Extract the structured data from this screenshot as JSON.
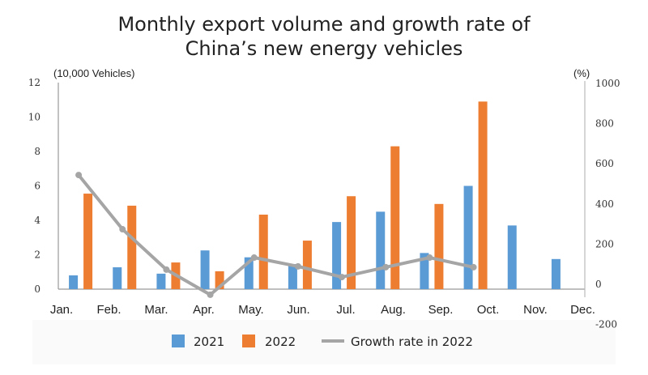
{
  "chart_data": {
    "type": "bar",
    "title_line1": "Monthly export volume and growth rate of",
    "title_line2": "China’s new energy vehicles",
    "ylabel": "(10,000 Vehicles)",
    "y2label": "(%)",
    "ylim": [
      0,
      12
    ],
    "yticks": [
      0,
      2,
      4,
      6,
      8,
      10,
      12
    ],
    "y2lim": [
      -200,
      1000
    ],
    "y2ticks": [
      -200,
      0,
      200,
      400,
      600,
      800,
      1000
    ],
    "categories": [
      "Jan.",
      "Feb.",
      "Mar.",
      "Apr.",
      "May.",
      "Jun.",
      "Jul.",
      "Aug.",
      "Sep.",
      "Oct.",
      "Nov.",
      "Dec."
    ],
    "series": [
      {
        "name": "2021",
        "type": "bar",
        "color": "#5b9bd5",
        "values": [
          0.8,
          1.27,
          0.9,
          2.25,
          1.85,
          1.46,
          3.9,
          4.5,
          2.1,
          6.0,
          3.7,
          1.75
        ]
      },
      {
        "name": "2022",
        "type": "bar",
        "color": "#ed7d31",
        "values": [
          5.55,
          4.85,
          1.55,
          1.04,
          4.33,
          2.82,
          5.4,
          8.3,
          4.95,
          10.9,
          null,
          null
        ]
      },
      {
        "name": "Growth rate in 2022",
        "type": "line",
        "axis": "right",
        "color": "#a5a5a5",
        "values": [
          544,
          274,
          73,
          -52,
          133,
          89,
          36,
          85,
          133,
          85,
          null,
          null
        ]
      }
    ],
    "grid": false,
    "legend": "bottom"
  }
}
